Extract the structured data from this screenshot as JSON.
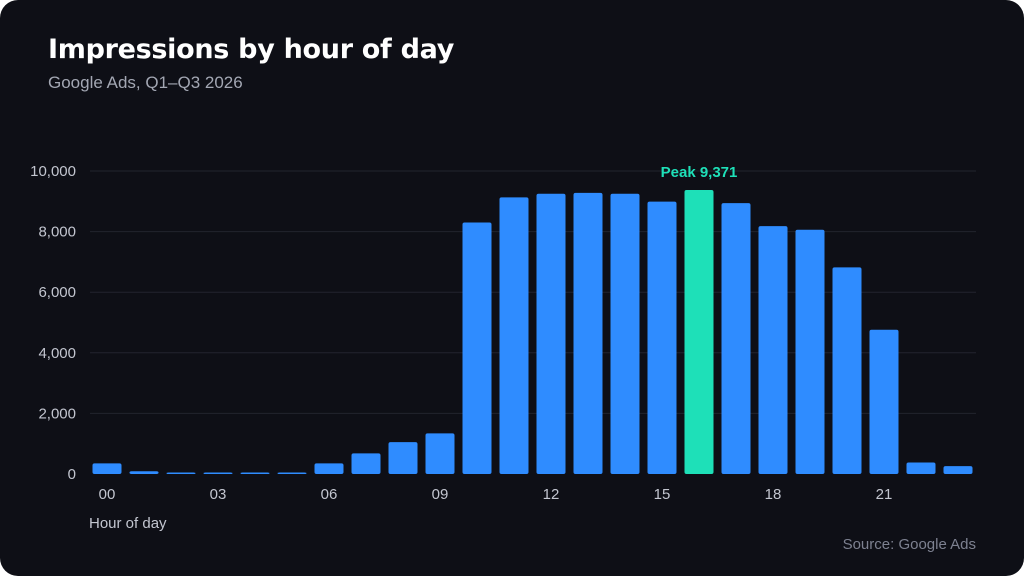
{
  "header": {
    "title": "Impressions by hour of day",
    "subtitle": "Google Ads, Q1–Q3 2026"
  },
  "footer": {
    "source": "Source: Google Ads"
  },
  "colors": {
    "background": "#0e0f16",
    "bar": "#2f8cff",
    "highlight": "#1ee0b8",
    "grid": "#22242e"
  },
  "chart_data": {
    "type": "bar",
    "title": "Impressions by hour of day",
    "subtitle": "Google Ads, Q1–Q3 2026",
    "xlabel": "Hour of day",
    "ylabel": "",
    "ylim": [
      0,
      10000
    ],
    "yticks": [
      0,
      2000,
      4000,
      6000,
      8000,
      10000
    ],
    "ytick_labels": [
      "0",
      "2,000",
      "4,000",
      "6,000",
      "8,000",
      "10,000"
    ],
    "categories": [
      "00",
      "01",
      "02",
      "03",
      "04",
      "05",
      "06",
      "07",
      "08",
      "09",
      "10",
      "11",
      "12",
      "13",
      "14",
      "15",
      "16",
      "17",
      "18",
      "19",
      "20",
      "21",
      "22",
      "23"
    ],
    "xtick_labels_shown": [
      "00",
      "03",
      "06",
      "09",
      "12",
      "15",
      "18",
      "21"
    ],
    "values": [
      350,
      90,
      30,
      30,
      30,
      30,
      350,
      680,
      1050,
      1340,
      8300,
      9130,
      9250,
      9280,
      9250,
      8990,
      9371,
      8940,
      8180,
      8060,
      6820,
      4760,
      380,
      260
    ],
    "highlight_index": 16,
    "annotations": [
      {
        "category": "16",
        "text": "Peak 9,371"
      }
    ],
    "grid": true,
    "legend": "none"
  }
}
